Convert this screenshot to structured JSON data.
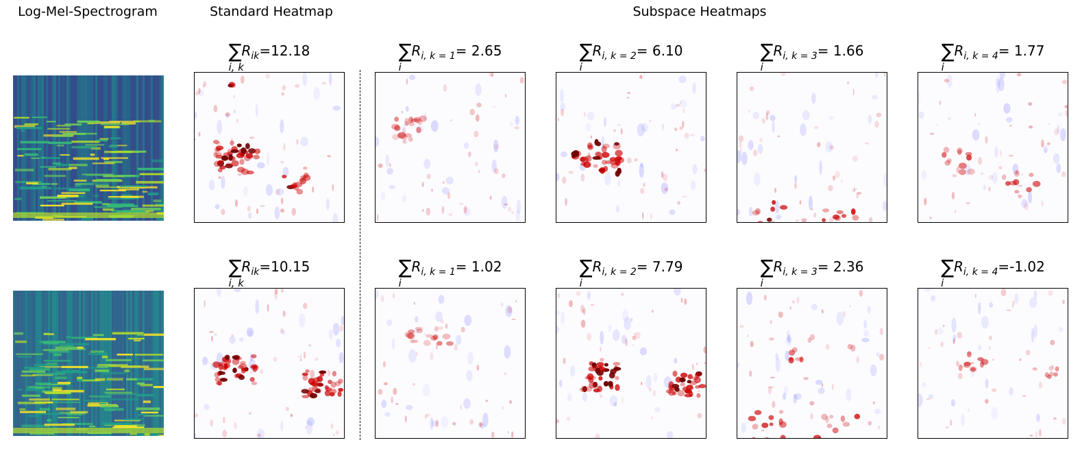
{
  "headers": {
    "spectrogram": "Log-Mel-Spectrogram",
    "standard": "Standard Heatmap",
    "subspace": "Subspace Heatmaps"
  },
  "colors": {
    "positive": "#cc0000",
    "negative": "#3333ff",
    "background": "#fcfcff",
    "colormap_spectrogram": "viridis"
  },
  "rows": [
    {
      "standard": {
        "sigma": "∑",
        "sigma_sub": "i, k",
        "R": "R",
        "R_sub": "ik",
        "value": "=12.18"
      },
      "subspaces": [
        {
          "sigma": "∑",
          "sigma_sub": "i",
          "R": "R",
          "R_sub": "i, k = 1",
          "value": "= 2.65"
        },
        {
          "sigma": "∑",
          "sigma_sub": "i",
          "R": "R",
          "R_sub": "i, k = 2",
          "value": "= 6.10"
        },
        {
          "sigma": "∑",
          "sigma_sub": "i",
          "R": "R",
          "R_sub": "i, k = 3",
          "value": "= 1.66"
        },
        {
          "sigma": "∑",
          "sigma_sub": "i",
          "R": "R",
          "R_sub": "i, k = 4",
          "value": "= 1.77"
        }
      ]
    },
    {
      "standard": {
        "sigma": "∑",
        "sigma_sub": "i, k",
        "R": "R",
        "R_sub": "ik",
        "value": "=10.15"
      },
      "subspaces": [
        {
          "sigma": "∑",
          "sigma_sub": "i",
          "R": "R",
          "R_sub": "i, k = 1",
          "value": "= 1.02"
        },
        {
          "sigma": "∑",
          "sigma_sub": "i",
          "R": "R",
          "R_sub": "i, k = 2",
          "value": "= 7.79"
        },
        {
          "sigma": "∑",
          "sigma_sub": "i",
          "R": "R",
          "R_sub": "i, k = 3",
          "value": "= 2.36"
        },
        {
          "sigma": "∑",
          "sigma_sub": "i",
          "R": "R",
          "R_sub": "i, k = 4",
          "value": "=-1.02"
        }
      ]
    }
  ]
}
